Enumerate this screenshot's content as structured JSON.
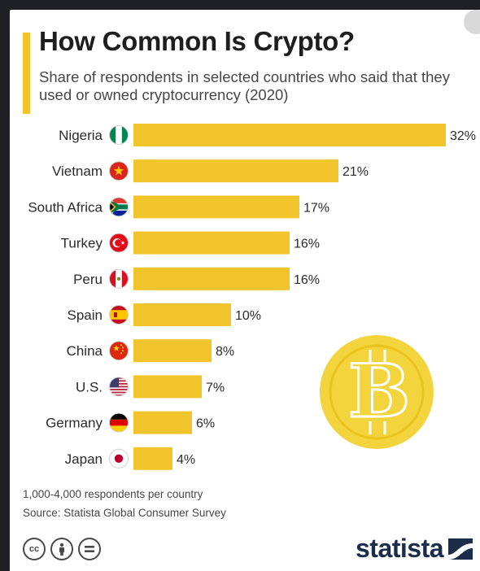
{
  "header": {
    "title": "How Common Is Crypto?",
    "subtitle": "Share of respondents in selected countries who said that they used or owned cryptocurrency (2020)"
  },
  "chart_data": {
    "type": "bar",
    "orientation": "horizontal",
    "categories": [
      "Nigeria",
      "Vietnam",
      "South Africa",
      "Turkey",
      "Peru",
      "Spain",
      "China",
      "U.S.",
      "Germany",
      "Japan"
    ],
    "values": [
      32,
      21,
      17,
      16,
      16,
      10,
      8,
      7,
      6,
      4
    ],
    "value_labels": [
      "32%",
      "21%",
      "17%",
      "16%",
      "16%",
      "10%",
      "8%",
      "7%",
      "6%",
      "4%"
    ],
    "flags": [
      "nigeria-flag-icon",
      "vietnam-flag-icon",
      "south-africa-flag-icon",
      "turkey-flag-icon",
      "peru-flag-icon",
      "spain-flag-icon",
      "china-flag-icon",
      "us-flag-icon",
      "germany-flag-icon",
      "japan-flag-icon"
    ],
    "xlim": [
      0,
      32
    ],
    "bar_color": "#f2c42b",
    "grid": false,
    "legend": "none"
  },
  "footer": {
    "note": "1,000-4,000 respondents per country",
    "source": "Source: Statista Global Consumer Survey",
    "license_icons": [
      "cc-icon",
      "attribution-icon",
      "no-derivatives-icon"
    ],
    "brand": "statista"
  },
  "decoration": {
    "coin_icon": "bitcoin-coin-icon"
  },
  "colors": {
    "accent": "#f2c42b",
    "coin": "#f4d43c",
    "brand": "#1a2d4a"
  }
}
